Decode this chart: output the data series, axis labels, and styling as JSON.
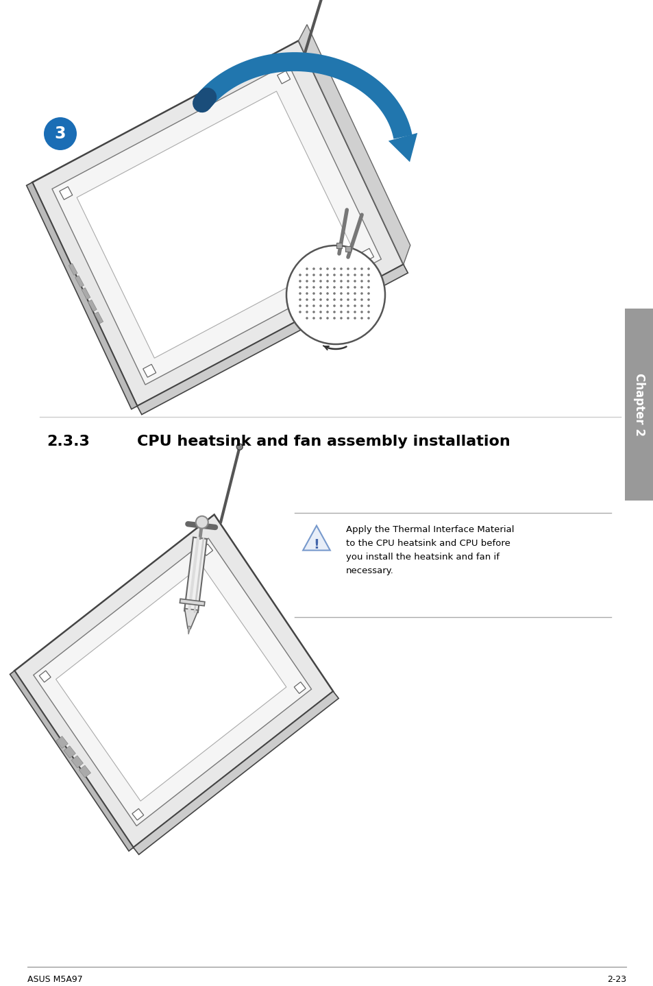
{
  "bg_color": "#ffffff",
  "chapter_tab_color": "#999999",
  "chapter_tab_text": "Chapter 2",
  "chapter_tab_text_color": "#ffffff",
  "step_circle_color": "#1a6db5",
  "step_number": "3",
  "section_number": "2.3.3",
  "section_title": "CPU heatsink and fan assembly installation",
  "warning_text_line1": "Apply the Thermal Interface Material",
  "warning_text_line2": "to the CPU heatsink and CPU before",
  "warning_text_line3": "you install the heatsink and fan if",
  "warning_text_line4": "necessary.",
  "footer_left": "ASUS M5A97",
  "footer_right": "2-23",
  "arrow_color": "#2176ae",
  "blue_color": "#2176ae",
  "line_color": "#555555",
  "light_gray": "#dddddd",
  "mid_gray": "#aaaaaa",
  "dark_gray": "#666666"
}
